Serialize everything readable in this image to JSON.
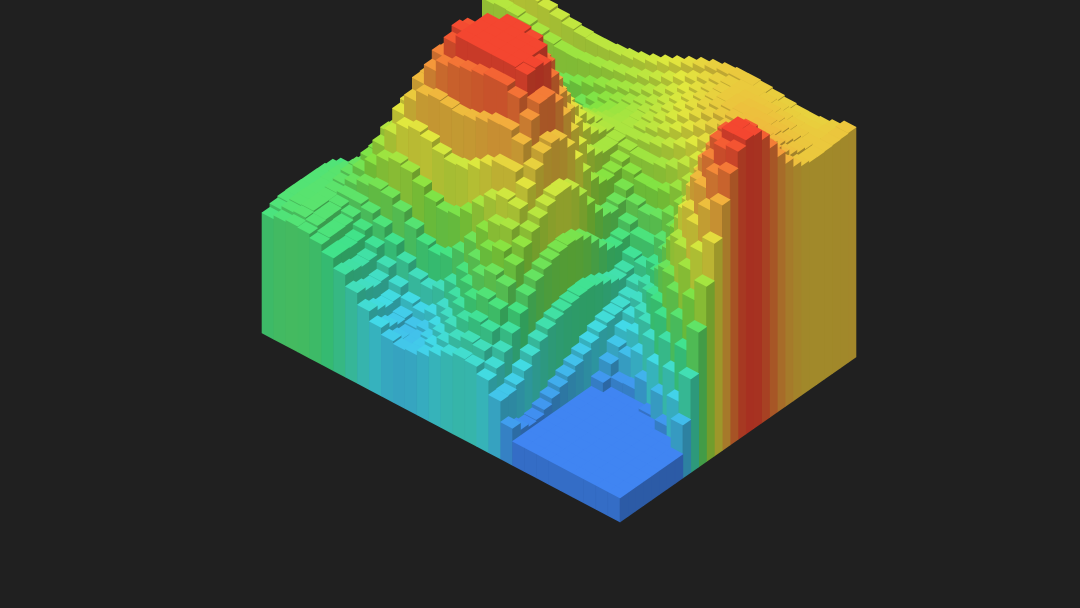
{
  "scene": {
    "background": "#202020",
    "grid": {
      "cols": 30,
      "rows": 30
    },
    "height_levels": {
      "min": 0,
      "max": 1
    },
    "colormap": [
      "#3d7fe6",
      "#3fd0dd",
      "#3ed881",
      "#7ed83e",
      "#d6dd3b",
      "#e8a33a",
      "#e8432e"
    ],
    "features": [
      {
        "kind": "valley",
        "u": 0.02,
        "v": 0.62,
        "strength": 0.85,
        "radius": 0.14
      },
      {
        "kind": "valley",
        "u": 0.2,
        "v": 0.8,
        "strength": 0.3,
        "radius": 0.1
      },
      {
        "kind": "valley",
        "u": 0.86,
        "v": 0.13,
        "strength": 0.85,
        "radius": 0.14
      },
      {
        "kind": "valley",
        "u": 0.78,
        "v": 0.3,
        "strength": 0.35,
        "radius": 0.12
      },
      {
        "kind": "valley",
        "u": 0.7,
        "v": 0.55,
        "strength": 0.25,
        "radius": 0.12
      },
      {
        "kind": "valley",
        "u": 0.35,
        "v": 0.15,
        "strength": 0.25,
        "radius": 0.12
      },
      {
        "kind": "peak",
        "u": 0.33,
        "v": 0.44,
        "strength": 0.55,
        "radius": 0.12
      },
      {
        "kind": "peak",
        "u": 0.5,
        "v": 0.4,
        "strength": 0.35,
        "radius": 0.1
      },
      {
        "kind": "peak",
        "u": 0.22,
        "v": 0.31,
        "strength": 0.3,
        "radius": 0.09
      },
      {
        "kind": "peak",
        "u": 0.95,
        "v": 0.55,
        "strength": 0.45,
        "radius": 0.12
      },
      {
        "kind": "peak",
        "u": 0.6,
        "v": 0.2,
        "strength": 0.2,
        "radius": 0.1
      }
    ]
  }
}
